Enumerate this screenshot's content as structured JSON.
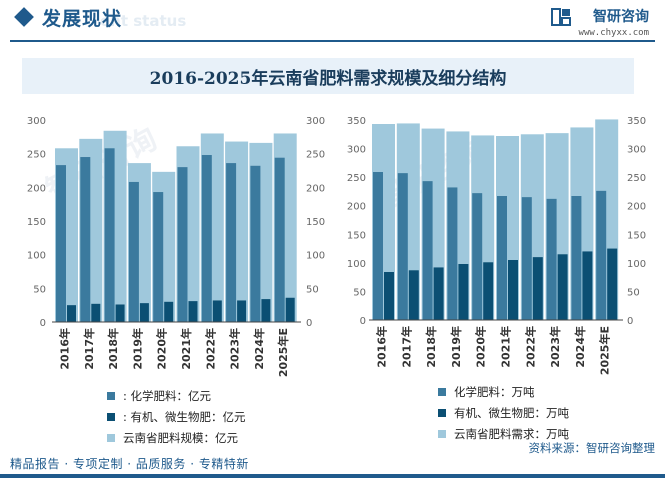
{
  "header": {
    "title": "发展现状",
    "subtitle_watermark": "ent status",
    "brand_name": "智研咨询",
    "brand_url": "www.chyxx.com"
  },
  "main_title": "2016-2025年云南省肥料需求规模及细分结构",
  "colors": {
    "series_dark": "#3b7a9e",
    "series_navy": "#0b4f73",
    "series_light": "#9fc8dc",
    "accent": "#1f5a8c"
  },
  "chart_data": [
    {
      "type": "bar",
      "categories": [
        "2016年",
        "2017年",
        "2018年",
        "2019年",
        "2020年",
        "2021年",
        "2022年",
        "2023年",
        "2024年",
        "2025年E"
      ],
      "series": [
        {
          "name": "化学肥料：亿元",
          "values": [
            233,
            245,
            258,
            208,
            193,
            230,
            248,
            236,
            232,
            244
          ]
        },
        {
          "name": "有机、微生物肥：亿元",
          "values": [
            25,
            27,
            26,
            28,
            30,
            31,
            32,
            32,
            34,
            36
          ]
        },
        {
          "name": "云南省肥料规模：亿元",
          "values": [
            258,
            272,
            284,
            236,
            223,
            261,
            280,
            268,
            266,
            280
          ]
        }
      ],
      "ylim": [
        0,
        300
      ],
      "yticks": [
        "0",
        "50",
        "100",
        "150",
        "200",
        "250",
        "300"
      ],
      "legend_labels": [
        ": 化学肥料：亿元",
        ": 有机、微生物肥：亿元",
        "云南省肥料规模：亿元"
      ]
    },
    {
      "type": "bar",
      "categories": [
        "2016年",
        "2017年",
        "2018年",
        "2019年",
        "2020年",
        "2021年",
        "2022年",
        "2023年",
        "2024年",
        "2025年E"
      ],
      "series": [
        {
          "name": "化学肥料：万吨",
          "values": [
            259,
            257,
            243,
            232,
            222,
            217,
            215,
            212,
            217,
            226
          ]
        },
        {
          "name": "有机、微生物肥：万吨",
          "values": [
            84,
            87,
            92,
            98,
            101,
            105,
            110,
            115,
            120,
            125
          ]
        },
        {
          "name": "云南省肥料需求：万吨",
          "values": [
            343,
            344,
            335,
            330,
            323,
            322,
            325,
            327,
            337,
            351
          ]
        }
      ],
      "ylim": [
        0,
        350
      ],
      "yticks": [
        "0",
        "50",
        "100",
        "150",
        "200",
        "250",
        "300",
        "350"
      ],
      "legend_labels": [
        "化学肥料：万吨",
        "有机、微生物肥：万吨",
        "云南省肥料需求：万吨"
      ]
    }
  ],
  "footer": {
    "services": "精品报告 · 专项定制 · 品质服务 · 专精特新",
    "source": "资料来源：智研咨询整理"
  }
}
